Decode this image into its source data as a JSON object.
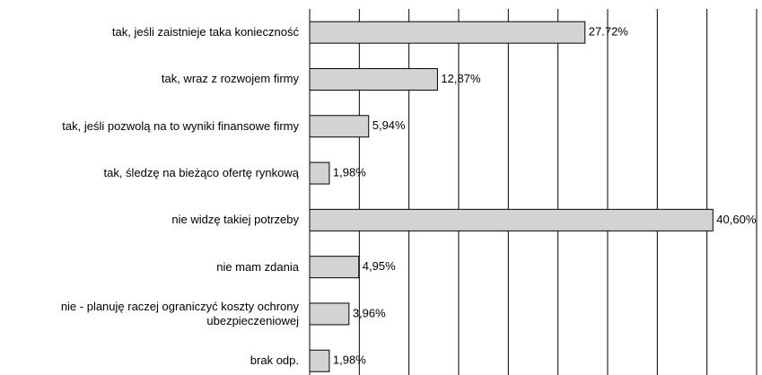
{
  "chart_data": {
    "type": "bar",
    "orientation": "horizontal",
    "categories": [
      "tak, jeśli zaistnieje taka konieczność",
      "tak, wraz z rozwojem firmy",
      "tak, jeśli pozwolą na to wyniki finansowe firmy",
      "tak,  śledzę na bieżąco ofertę rynkową",
      "nie widzę takiej potrzeby",
      "nie mam zdania",
      "nie - planuję raczej ograniczyć  koszty ochrony\nubezpieczeniowej",
      "brak odp."
    ],
    "values": [
      27.72,
      12.87,
      5.94,
      1.98,
      40.6,
      4.95,
      3.96,
      1.98
    ],
    "value_labels": [
      "27.72%",
      "12,87%",
      "5,94%",
      "1,98%",
      "40,60%",
      "4,95%",
      "3,96%",
      "1,98%"
    ],
    "color": "#d3d3d3",
    "xlim": [
      0,
      45
    ],
    "xticks": [
      0,
      5,
      10,
      15,
      20,
      25,
      30,
      35,
      40,
      45
    ],
    "grid": true
  }
}
